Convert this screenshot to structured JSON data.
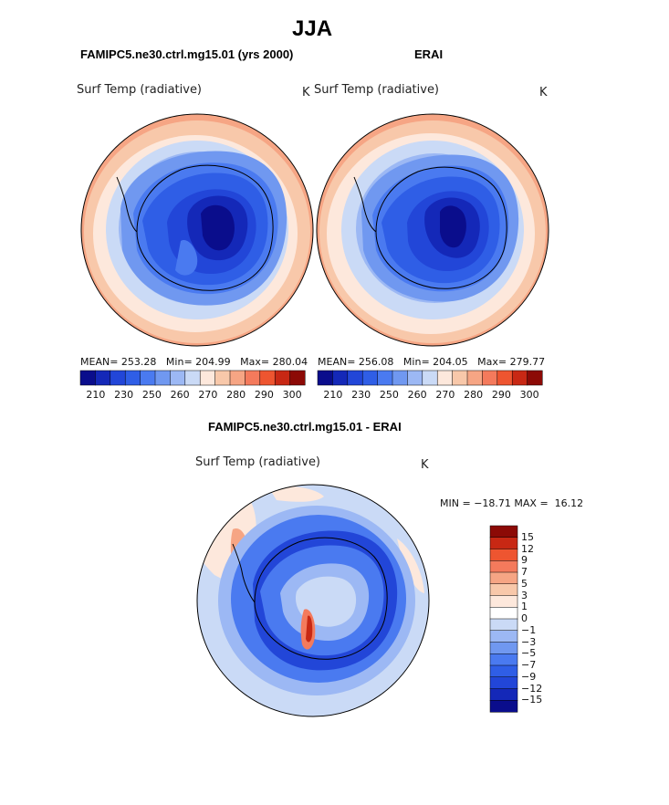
{
  "page": {
    "title": "JJA",
    "diff_subtitle": "FAMIPC5.ne30.ctrl.mg15.01 - ERAI"
  },
  "palettes": {
    "abs": [
      "#0a0d8c",
      "#1428b8",
      "#2246d8",
      "#2f5ee6",
      "#4a7af0",
      "#7098f0",
      "#9cb8f4",
      "#cadaf6",
      "#fde8dc",
      "#f8c8aa",
      "#f6a584",
      "#f47a5c",
      "#ee5530",
      "#c82814",
      "#8c0a06"
    ],
    "diff": [
      "#0a0d8c",
      "#1428b8",
      "#2246d8",
      "#2f5ee6",
      "#4a7af0",
      "#7098f0",
      "#9cb8f4",
      "#cadaf6",
      "#ffffff",
      "#fde8dc",
      "#f8c8aa",
      "#f6a584",
      "#f47a5c",
      "#ee5530",
      "#c82814",
      "#8c0a06"
    ]
  },
  "panels": [
    {
      "id": "model",
      "subtitle": "FAMIPC5.ne30.ctrl.mg15.01 (yrs 2000)",
      "plot_label": "Surf Temp (radiative)",
      "units": "K",
      "mean_label": "MEAN=",
      "mean": "253.28",
      "min_label": "Min=",
      "min": "204.99",
      "max_label": "Max=",
      "max": "280.04",
      "ticks": [
        "210",
        "230",
        "250",
        "260",
        "270",
        "280",
        "290",
        "300"
      ]
    },
    {
      "id": "obs",
      "subtitle": "ERAI",
      "plot_label": "Surf Temp (radiative)",
      "units": "K",
      "mean_label": "MEAN=",
      "mean": "256.08",
      "min_label": "Min=",
      "min": "204.05",
      "max_label": "Max=",
      "max": "279.77",
      "ticks": [
        "210",
        "230",
        "250",
        "260",
        "270",
        "280",
        "290",
        "300"
      ]
    }
  ],
  "diff": {
    "plot_label": "Surf Temp (radiative)",
    "units": "K",
    "min_label": "MIN =",
    "min": "−18.71",
    "max_label": "MAX =",
    "max": "16.12",
    "ticks_top_to_bottom": [
      "15",
      "12",
      "9",
      "7",
      "5",
      "3",
      "1",
      "0",
      "−1",
      "−3",
      "−5",
      "−7",
      "−9",
      "−12",
      "−15"
    ]
  }
}
